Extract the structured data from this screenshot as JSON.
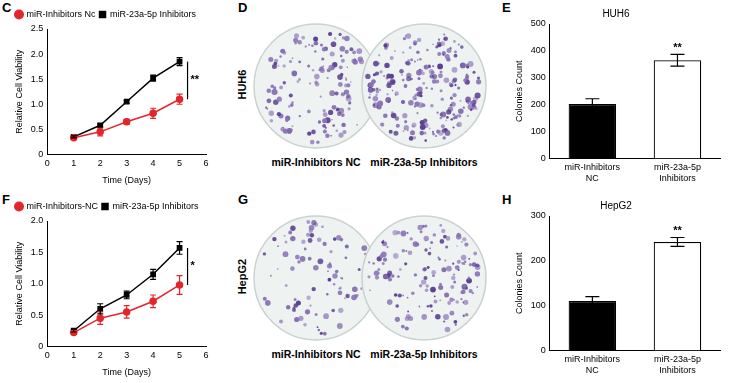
{
  "chart_data": [
    {
      "type": "line",
      "annotations": {
        "panel": "C",
        "significance": "**"
      },
      "xlabel": "Time (Days)",
      "ylabel": "Relative Cell Viability",
      "x": [
        1,
        2,
        3,
        4,
        5
      ],
      "xlim": [
        0,
        6
      ],
      "xticks": [
        0,
        1,
        2,
        3,
        4,
        5,
        6
      ],
      "ylim": [
        0,
        2.5
      ],
      "yticks": [
        0,
        0.5,
        {
          "value": 1,
          "label": "1.0"
        },
        1.5,
        {
          "value": 2,
          "label": "2.0"
        },
        2.5
      ],
      "legend": "upper left",
      "grid": false,
      "series": [
        {
          "name": "miR-Inhibitors Nc",
          "color": "#e3262b",
          "marker": "circle",
          "values": [
            0.33,
            0.45,
            0.65,
            0.82,
            1.1
          ],
          "errors": [
            0.03,
            0.08,
            0.05,
            0.1,
            0.1
          ]
        },
        {
          "name": "miR-23a-5p Inhibitors",
          "color": "#000000",
          "marker": "square",
          "values": [
            0.35,
            0.58,
            1.05,
            1.52,
            1.85
          ],
          "errors": [
            0.02,
            0.03,
            0.03,
            0.06,
            0.08
          ]
        }
      ]
    },
    {
      "type": "bar",
      "title": "HUH6",
      "annotations": {
        "panel": "E",
        "significance": "**"
      },
      "ylabel": "Colonies Count",
      "categories": [
        "miR-Inhibitors NC",
        "miR-23a-5p Inhibitors"
      ],
      "values": [
        202,
        365
      ],
      "errors": [
        20,
        22
      ],
      "colors": [
        "#000000",
        "#ffffff"
      ],
      "ylim": [
        0,
        500
      ],
      "yticks": [
        0,
        100,
        200,
        300,
        400,
        500
      ],
      "grid": false
    },
    {
      "type": "line",
      "annotations": {
        "panel": "F",
        "significance": "*"
      },
      "xlabel": "Time (Days)",
      "ylabel": "Relative Cell Viability",
      "x": [
        1,
        2,
        3,
        4,
        5
      ],
      "xlim": [
        0,
        6
      ],
      "xticks": [
        0,
        1,
        2,
        3,
        4,
        5,
        6
      ],
      "ylim": [
        0,
        2
      ],
      "yticks": [
        0,
        0.5,
        {
          "value": 1,
          "label": "1.0"
        },
        1.5,
        {
          "value": 2,
          "label": "2.0"
        }
      ],
      "legend": "upper left",
      "grid": false,
      "series": [
        {
          "name": "miR-Inhibitors-NC",
          "color": "#e3262b",
          "marker": "circle",
          "values": [
            0.22,
            0.45,
            0.55,
            0.72,
            0.98
          ],
          "errors": [
            0.02,
            0.1,
            0.1,
            0.1,
            0.15
          ]
        },
        {
          "name": "miR-23a-5p Inhibitors",
          "color": "#000000",
          "marker": "square",
          "values": [
            0.25,
            0.6,
            0.82,
            1.15,
            1.57
          ],
          "errors": [
            0.02,
            0.08,
            0.06,
            0.08,
            0.1
          ]
        }
      ]
    },
    {
      "type": "bar",
      "title": "HepG2",
      "annotations": {
        "panel": "H",
        "significance": "**"
      },
      "ylabel": "Colonies Count",
      "categories": [
        "miR-Inhibitors NC",
        "miR-23a-5p Inhibitors"
      ],
      "values": [
        110,
        242
      ],
      "errors": [
        10,
        10
      ],
      "colors": [
        "#000000",
        "#ffffff"
      ],
      "ylim": [
        0,
        300
      ],
      "yticks": [
        0,
        100,
        200,
        300
      ],
      "grid": false
    }
  ],
  "images": [
    {
      "panel": "D",
      "label": "HUH6",
      "captions": [
        "miR-Inhibitors NC",
        "miR-23a-5p Inhibitors"
      ]
    },
    {
      "panel": "G",
      "label": "HepG2",
      "captions": [
        "miR-Inhibitors NC",
        "miR-23a-5p Inhibitors"
      ]
    }
  ]
}
